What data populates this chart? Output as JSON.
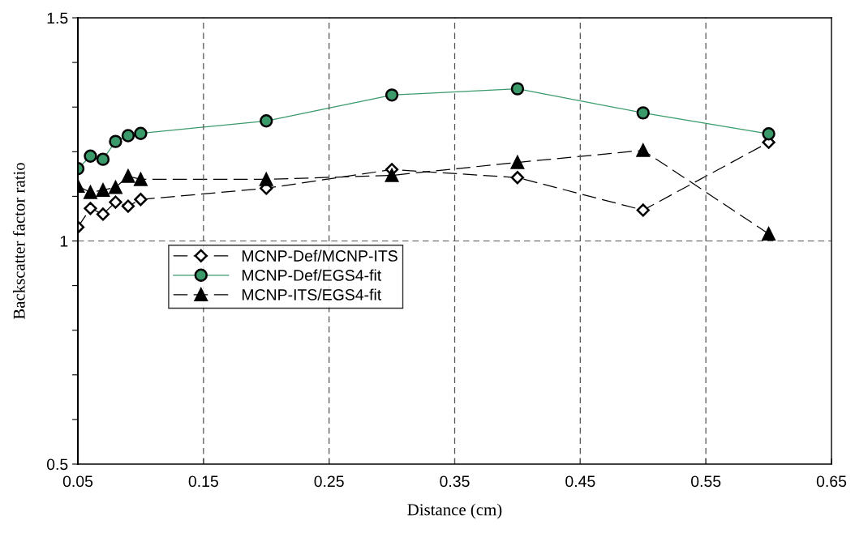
{
  "chart_data": {
    "type": "line",
    "xlabel": "Distance (cm)",
    "ylabel": "Backscatter factor ratio",
    "x": [
      0.05,
      0.06,
      0.07,
      0.08,
      0.09,
      0.1,
      0.2,
      0.3,
      0.4,
      0.5,
      0.6
    ],
    "series": [
      {
        "name": "MCNP-Def/MCNP-ITS",
        "color": "#000000",
        "marker": "diamond",
        "line_style": "dashed",
        "values": [
          1.031,
          1.073,
          1.06,
          1.087,
          1.078,
          1.093,
          1.118,
          1.16,
          1.142,
          1.069,
          1.221
        ]
      },
      {
        "name": "MCNP-Def/EGS4-fit",
        "color": "#3a9a6a",
        "marker": "circle",
        "line_style": "solid",
        "values": [
          1.162,
          1.19,
          1.183,
          1.223,
          1.236,
          1.241,
          1.269,
          1.327,
          1.341,
          1.287,
          1.24
        ]
      },
      {
        "name": "MCNP-ITS/EGS4-fit",
        "color": "#000000",
        "marker": "triangle",
        "line_style": "dashed",
        "values": [
          1.123,
          1.109,
          1.114,
          1.12,
          1.145,
          1.138,
          1.138,
          1.147,
          1.176,
          1.203,
          1.016
        ]
      }
    ],
    "xlim": [
      0.05,
      0.65
    ],
    "xticks": [
      0.05,
      0.15,
      0.25,
      0.35,
      0.45,
      0.55,
      0.65
    ],
    "ylim": [
      0.5,
      1.5
    ],
    "yticks": [
      0.5,
      {
        "value": 0.6,
        "label": null
      },
      {
        "value": 0.7,
        "label": null
      },
      {
        "value": 0.8,
        "label": null
      },
      {
        "value": 0.9,
        "label": null
      },
      1,
      {
        "value": 1.1,
        "label": null
      },
      {
        "value": 1.2,
        "label": null
      },
      {
        "value": 1.3,
        "label": null
      },
      {
        "value": 1.4,
        "label": null
      },
      1.5
    ],
    "grid": true,
    "legend": "left"
  }
}
